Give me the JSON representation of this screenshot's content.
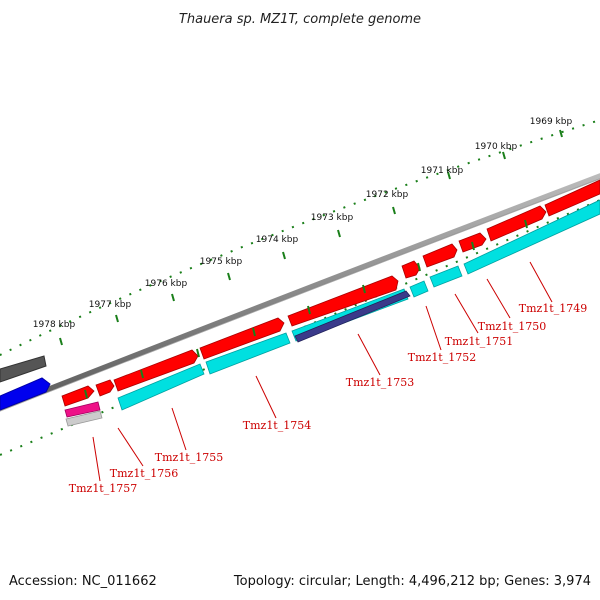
{
  "title": "Thauera sp. MZ1T, complete genome",
  "footer": {
    "accession": "Accession: NC_011662",
    "topology": "Topology: circular; Length: 4,496,212 bp; Genes: 3,974"
  },
  "kbp_labels": [
    "1969 kbp",
    "1970 kbp",
    "1971 kbp",
    "1972 kbp",
    "1973 kbp",
    "1974 kbp",
    "1975 kbp",
    "1976 kbp",
    "1977 kbp",
    "1978 kbp"
  ],
  "gene_labels": [
    "Tmz1t_1749",
    "Tmz1t_1750",
    "Tmz1t_1751",
    "Tmz1t_1752",
    "Tmz1t_1753",
    "Tmz1t_1754",
    "Tmz1t_1755",
    "Tmz1t_1756",
    "Tmz1t_1757"
  ],
  "colors": {
    "forward_cds": "#ff0000",
    "reverse_cds": "#00e0e0",
    "backbone": "#888888",
    "tick": "#1a7f1a",
    "label": "#cc0000",
    "other_feature_blue": "#0000ee",
    "other_feature_gray": "#555555",
    "rna_feature": "#ee1188"
  }
}
